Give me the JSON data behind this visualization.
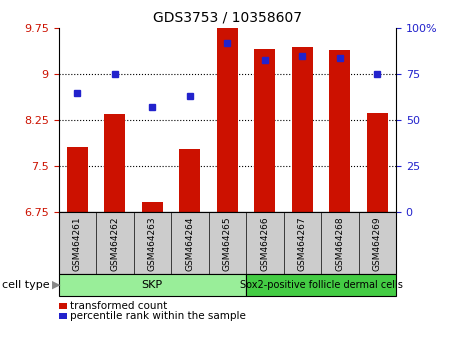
{
  "title": "GDS3753 / 10358607",
  "samples": [
    "GSM464261",
    "GSM464262",
    "GSM464263",
    "GSM464264",
    "GSM464265",
    "GSM464266",
    "GSM464267",
    "GSM464268",
    "GSM464269"
  ],
  "bar_values": [
    7.82,
    8.35,
    6.92,
    7.78,
    9.76,
    9.42,
    9.45,
    9.4,
    8.37
  ],
  "dot_values": [
    65,
    75,
    57,
    63,
    92,
    83,
    85,
    84,
    75
  ],
  "bar_color": "#cc1100",
  "dot_color": "#2222cc",
  "ylim_left": [
    6.75,
    9.75
  ],
  "ylim_right": [
    0,
    100
  ],
  "yticks_left": [
    6.75,
    7.5,
    8.25,
    9.0,
    9.75
  ],
  "yticks_right": [
    0,
    25,
    50,
    75,
    100
  ],
  "ytick_labels_left": [
    "6.75",
    "7.5",
    "8.25",
    "9",
    "9.75"
  ],
  "ytick_labels_right": [
    "0",
    "25",
    "50",
    "75",
    "100%"
  ],
  "gridlines_at": [
    7.5,
    8.25,
    9.0
  ],
  "group1_label": "SKP",
  "group2_label": "Sox2-positive follicle dermal cells",
  "group1_end": 4,
  "group1_color": "#99ee99",
  "group2_color": "#44cc44",
  "cell_type_label": "cell type",
  "legend_bar_label": "transformed count",
  "legend_dot_label": "percentile rank within the sample",
  "bg_color": "#ffffff",
  "bar_width": 0.55,
  "tick_label_color_left": "#cc1100",
  "tick_label_color_right": "#2222cc",
  "sample_bg_color": "#cccccc",
  "xlim": [
    -0.5,
    8.5
  ]
}
